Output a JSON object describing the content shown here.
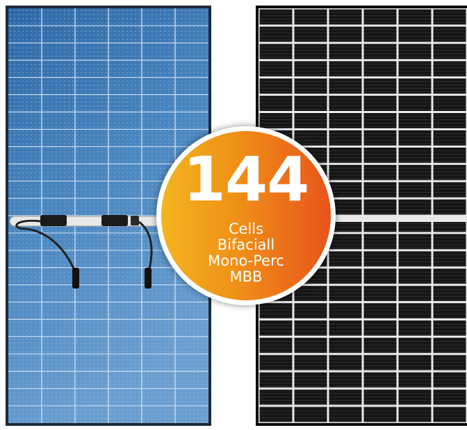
{
  "badge": {
    "number": "144",
    "lines": [
      "Cells",
      "Bifaciall",
      "Mono-Perc",
      "MBB"
    ]
  },
  "colors": {
    "blue_panel": "#3f7ab8",
    "mono_panel": "#141414",
    "badge_gradient_start": "#f3b51f",
    "badge_gradient_end": "#e8541b"
  },
  "icons": [
    "junction-box-icon",
    "mc4-connector-icon"
  ]
}
